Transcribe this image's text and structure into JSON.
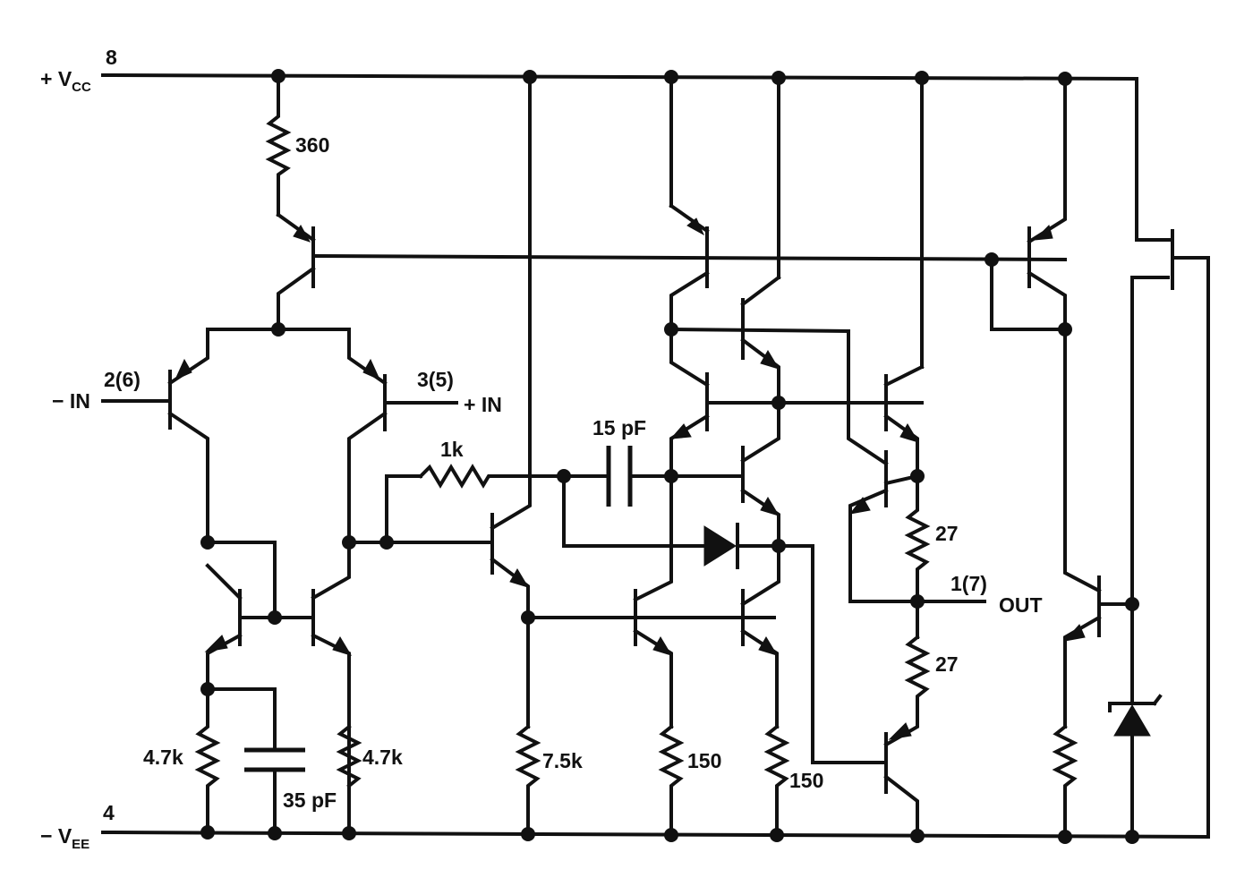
{
  "pins": {
    "vcc_prefix": "+ V",
    "vcc_sub": "CC",
    "vcc_pin": "8",
    "vee_prefix": "− V",
    "vee_sub": "EE",
    "vee_pin": "4",
    "inv_input": "− IN",
    "inv_pin": "2(6)",
    "noninv_input": "+ IN",
    "noninv_pin": "3(5)",
    "output": "OUT",
    "output_pin": "1(7)"
  },
  "components": {
    "r_tail": "360",
    "r_load_left": "4.7k",
    "r_load_right": "4.7k",
    "c_comp_input": "35 pF",
    "r_feed": "1k",
    "c_miller": "15 pF",
    "r_bias": "7.5k",
    "r_emitter_1": "150",
    "r_emitter_2": "150",
    "r_out_top": "27",
    "r_out_bottom": "27"
  }
}
